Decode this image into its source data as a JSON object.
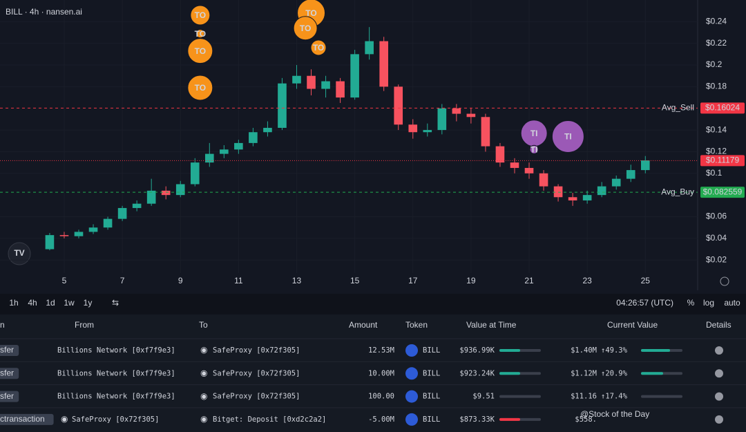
{
  "header": "BILL · 4h · nansen.ai",
  "chart_data": {
    "type": "candlestick",
    "x": [
      4.5,
      5,
      5.5,
      6,
      6.5,
      7,
      7.5,
      8,
      8.5,
      9,
      9.5,
      10,
      10.5,
      11,
      11.5,
      12,
      12.5,
      13,
      13.5,
      14,
      14.5,
      15,
      15.5,
      16,
      16.5,
      17,
      17.5,
      18,
      18.5,
      19,
      19.5,
      20,
      20.5,
      21,
      21.5,
      22,
      22.5,
      23,
      23.5,
      24,
      24.5,
      25
    ],
    "open": [
      0.03,
      0.043,
      0.042,
      0.046,
      0.05,
      0.058,
      0.068,
      0.072,
      0.084,
      0.08,
      0.09,
      0.11,
      0.118,
      0.122,
      0.128,
      0.138,
      0.142,
      0.183,
      0.19,
      0.178,
      0.185,
      0.17,
      0.21,
      0.222,
      0.18,
      0.145,
      0.138,
      0.14,
      0.16,
      0.155,
      0.152,
      0.125,
      0.11,
      0.105,
      0.1,
      0.088,
      0.078,
      0.075,
      0.08,
      0.088,
      0.095,
      0.103
    ],
    "high": [
      0.045,
      0.046,
      0.048,
      0.053,
      0.06,
      0.07,
      0.075,
      0.095,
      0.088,
      0.093,
      0.114,
      0.128,
      0.126,
      0.131,
      0.142,
      0.148,
      0.188,
      0.2,
      0.196,
      0.19,
      0.188,
      0.214,
      0.235,
      0.226,
      0.182,
      0.15,
      0.146,
      0.164,
      0.164,
      0.16,
      0.155,
      0.128,
      0.114,
      0.11,
      0.103,
      0.09,
      0.082,
      0.084,
      0.092,
      0.098,
      0.108,
      0.116
    ],
    "low": [
      0.029,
      0.04,
      0.04,
      0.044,
      0.048,
      0.056,
      0.065,
      0.07,
      0.076,
      0.078,
      0.088,
      0.106,
      0.114,
      0.118,
      0.125,
      0.134,
      0.14,
      0.178,
      0.172,
      0.17,
      0.165,
      0.168,
      0.205,
      0.176,
      0.14,
      0.132,
      0.134,
      0.136,
      0.148,
      0.146,
      0.12,
      0.106,
      0.1,
      0.095,
      0.084,
      0.074,
      0.07,
      0.072,
      0.078,
      0.085,
      0.092,
      0.1
    ],
    "close": [
      0.043,
      0.042,
      0.046,
      0.05,
      0.058,
      0.068,
      0.072,
      0.084,
      0.08,
      0.09,
      0.11,
      0.118,
      0.122,
      0.128,
      0.138,
      0.142,
      0.183,
      0.19,
      0.178,
      0.185,
      0.17,
      0.21,
      0.222,
      0.18,
      0.145,
      0.138,
      0.14,
      0.16,
      0.155,
      0.152,
      0.125,
      0.11,
      0.105,
      0.1,
      0.088,
      0.078,
      0.075,
      0.08,
      0.088,
      0.095,
      0.103,
      0.112
    ],
    "up_color": "#22ab94",
    "down_color": "#f7525f",
    "xlim": [
      2.79,
      26.8
    ],
    "xticks": [
      5,
      7,
      9,
      11,
      13,
      15,
      17,
      19,
      21,
      23,
      25
    ],
    "ylim": [
      0.008,
      0.26
    ],
    "yticks": [
      {
        "value": 0.02,
        "label": "$0.02"
      },
      {
        "value": 0.04,
        "label": "$0.04"
      },
      {
        "value": 0.06,
        "label": "$0.06"
      },
      {
        "value": 0.1,
        "label": "$0.1"
      },
      {
        "value": 0.12,
        "label": "$0.12"
      },
      {
        "value": 0.14,
        "label": "$0.14"
      },
      {
        "value": 0.18,
        "label": "$0.18"
      },
      {
        "value": 0.2,
        "label": "$0.2"
      },
      {
        "value": 0.22,
        "label": "$0.22"
      },
      {
        "value": 0.24,
        "label": "$0.24"
      }
    ],
    "grid": true,
    "lines": [
      {
        "name": "Avg_Sell",
        "value": 0.16024,
        "label": "$0.16024",
        "color": "#f23645",
        "style": "dashed"
      },
      {
        "name": "Avg_Buy",
        "value": 0.082559,
        "label": "$0.082559",
        "color": "#22ab50",
        "style": "dashed"
      },
      {
        "value": 0.11179,
        "label": "$0.11179",
        "color": "#f23645",
        "style": "dotted"
      }
    ],
    "markers": [
      {
        "label": "TO",
        "x": 9.68,
        "y": 0.246,
        "color": "#f7931a"
      },
      {
        "label": "TO",
        "x": 9.68,
        "y": 0.229,
        "color": "#f7931a"
      },
      {
        "label": "TO",
        "x": 9.68,
        "y": 0.213,
        "color": "#f7931a"
      },
      {
        "label": "TO",
        "x": 9.68,
        "y": 0.179,
        "color": "#f7931a"
      },
      {
        "label": "TO",
        "x": 13.5,
        "y": 0.248,
        "color": "#f7931a"
      },
      {
        "label": "TO",
        "x": 13.3,
        "y": 0.234,
        "color": "#f7931a"
      },
      {
        "label": "TO",
        "x": 13.75,
        "y": 0.216,
        "color": "#f7931a"
      },
      {
        "label": "TI",
        "x": 21.17,
        "y": 0.137,
        "color": "#9b59b6"
      },
      {
        "label": "TI",
        "x": 21.17,
        "y": 0.122,
        "color": "#9b59b6"
      },
      {
        "label": "TI",
        "x": 22.34,
        "y": 0.134,
        "color": "#9b59b6"
      }
    ]
  },
  "toolbar": {
    "ranges": [
      "1h",
      "4h",
      "1d",
      "1w",
      "1y"
    ],
    "time": "04:26:57 (UTC)",
    "options": [
      "%",
      "log",
      "auto"
    ]
  },
  "table": {
    "columns": [
      "n",
      "From",
      "To",
      "Amount",
      "Token",
      "Value at Time",
      "Current Value",
      "Details"
    ],
    "rows": [
      {
        "type": "sfer",
        "from": "Billions Network [0xf7f9e3]",
        "to": "SafeProxy [0x72f305]",
        "amount": "12.53M",
        "token": "BILL",
        "value_at_time": "$936.99K",
        "current_value": "$1.40M",
        "change": "↑49.3%"
      },
      {
        "type": "sfer",
        "from": "Billions Network [0xf7f9e3]",
        "to": "SafeProxy [0x72f305]",
        "amount": "10.00M",
        "token": "BILL",
        "value_at_time": "$923.24K",
        "current_value": "$1.12M",
        "change": "↑20.9%"
      },
      {
        "type": "sfer",
        "from": "Billions Network [0xf7f9e3]",
        "to": "SafeProxy [0x72f305]",
        "amount": "100.00",
        "token": "BILL",
        "value_at_time": "$9.51",
        "current_value": "$11.16",
        "change": "↑17.4%"
      },
      {
        "type": "ctransaction",
        "from": "SafeProxy [0x72f305]",
        "to": "Bitget: Deposit [0xd2c2a2]",
        "amount": "-5.00M",
        "token": "BILL",
        "value_at_time": "$873.33K",
        "current_value": "$558."
      }
    ]
  },
  "watermark": "@Stock of the Day"
}
